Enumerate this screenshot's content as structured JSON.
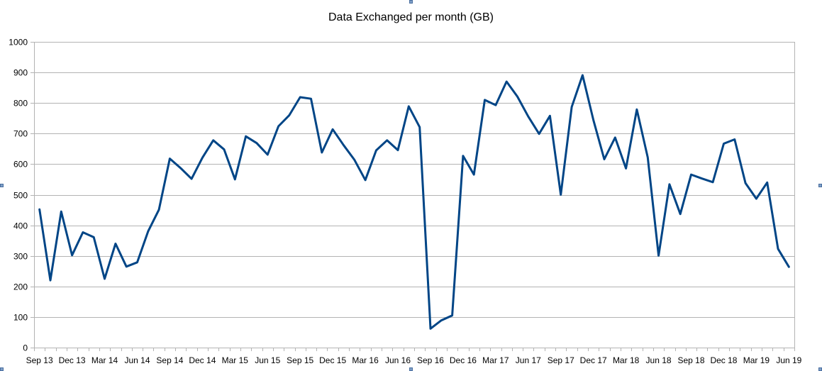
{
  "chart_data": {
    "type": "line",
    "title": "Data Exchanged per month (GB)",
    "xlabel": "",
    "ylabel": "",
    "ylim": [
      0,
      1000
    ],
    "y_ticks": [
      0,
      100,
      200,
      300,
      400,
      500,
      600,
      700,
      800,
      900,
      1000
    ],
    "x_tick_labels": [
      "Sep 13",
      "Dec 13",
      "Mar 14",
      "Jun 14",
      "Sep 14",
      "Dec 14",
      "Mar 15",
      "Jun 15",
      "Sep 15",
      "Dec 15",
      "Mar 16",
      "Jun 16",
      "Sep 16",
      "Dec 16",
      "Mar 17",
      "Jun 17",
      "Sep 17",
      "Dec 17",
      "Mar 18",
      "Jun 18",
      "Sep 18",
      "Dec 18",
      "Mar 19",
      "Jun 19"
    ],
    "grid": true,
    "legend": "none",
    "line_color": "#004586",
    "series": [
      {
        "values": [
          452,
          220,
          445,
          302,
          377,
          361,
          225,
          340,
          265,
          279,
          380,
          451,
          618,
          587,
          552,
          621,
          678,
          648,
          550,
          691,
          669,
          631,
          724,
          760,
          819,
          814,
          638,
          714,
          662,
          614,
          548,
          645,
          678,
          646,
          789,
          721,
          62,
          89,
          105,
          627,
          566,
          810,
          793,
          870,
          821,
          756,
          699,
          758,
          500,
          787,
          891,
          744,
          616,
          687,
          586,
          779,
          622,
          301,
          534,
          437,
          566,
          553,
          541,
          667,
          681,
          538,
          487,
          540,
          323,
          264
        ]
      }
    ]
  }
}
